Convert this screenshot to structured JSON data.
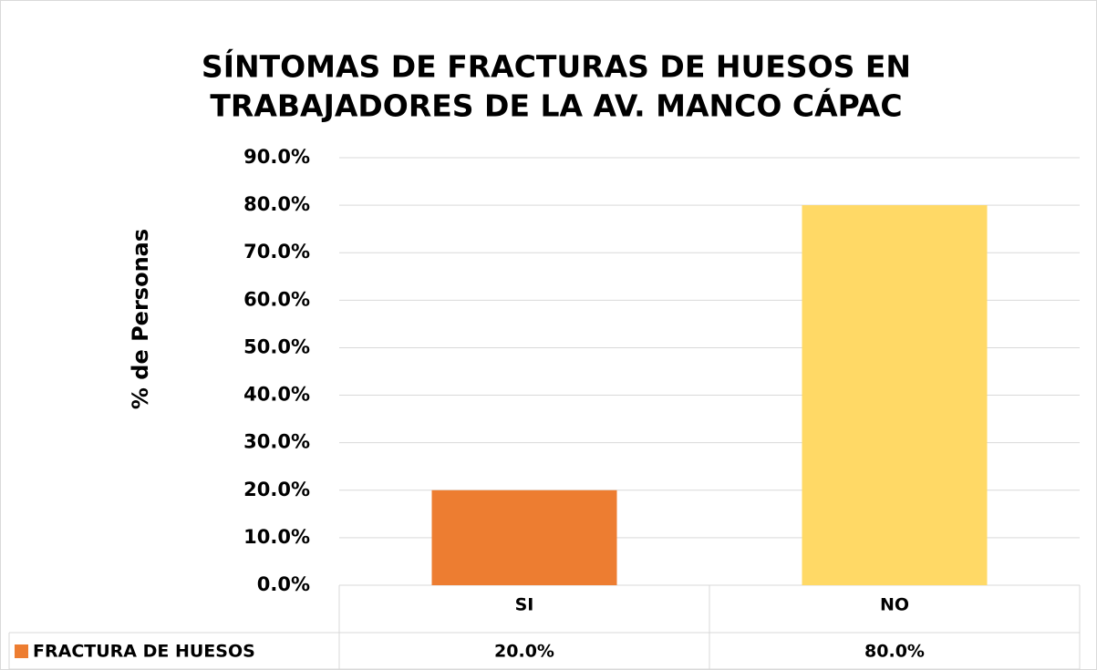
{
  "chart_data": {
    "type": "bar",
    "title": [
      "SÍNTOMAS DE FRACTURAS DE HUESOS EN",
      "TRABAJADORES DE LA AV. MANCO CÁPAC"
    ],
    "ylabel": "% de Personas",
    "categories": [
      "SI",
      "NO"
    ],
    "series": [
      {
        "name": "FRACTURA DE HUESOS",
        "colors": [
          "#ed7d31",
          "#ffd966"
        ],
        "values": [
          20,
          80
        ],
        "value_labels": [
          "20.0%",
          "80.0%"
        ]
      }
    ],
    "ylim": [
      0,
      90
    ],
    "yticks": [
      {
        "value": 0,
        "label": "0.0%"
      },
      {
        "value": 10,
        "label": "10.0%"
      },
      {
        "value": 20,
        "label": "20.0%"
      },
      {
        "value": 30,
        "label": "30.0%"
      },
      {
        "value": 40,
        "label": "40.0%"
      },
      {
        "value": 50,
        "label": "50.0%"
      },
      {
        "value": 60,
        "label": "60.0%"
      },
      {
        "value": 70,
        "label": "70.0%"
      },
      {
        "value": 80,
        "label": "80.0%"
      },
      {
        "value": 90,
        "label": "90.0%"
      }
    ],
    "grid": true
  }
}
